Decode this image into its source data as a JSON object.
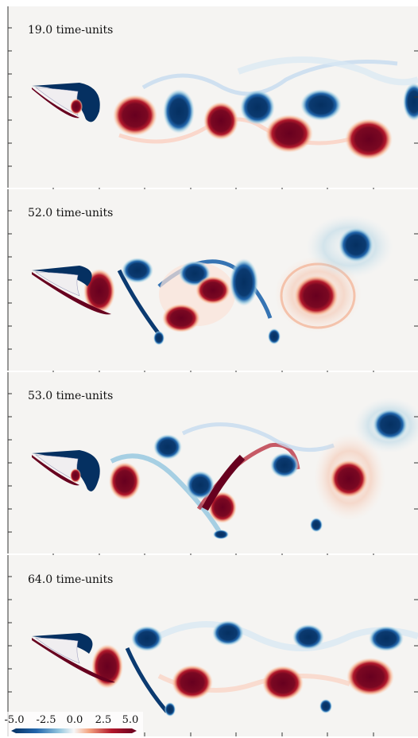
{
  "panels": [
    {
      "label": "19.0 time-units"
    },
    {
      "label": "52.0 time-units"
    },
    {
      "label": "53.0 time-units"
    },
    {
      "label": "64.0 time-units"
    }
  ],
  "colorbar": {
    "ticks": [
      "-5.0",
      "-2.5",
      "0.0",
      "2.5",
      "5.0"
    ],
    "colors": {
      "neg_strong": "#053061",
      "neg_mid": "#4393c3",
      "neutral": "#f7f7f7",
      "pos_mid": "#d6604d",
      "pos_strong": "#67001f"
    }
  },
  "colors": {
    "background": "#f5f4f2",
    "axis": "#333333",
    "blue_core": "#053061",
    "blue_mid": "#2166ac",
    "blue_light": "#92c5de",
    "red_core": "#67001f",
    "red_mid": "#b2182b",
    "red_light": "#f4a582"
  }
}
